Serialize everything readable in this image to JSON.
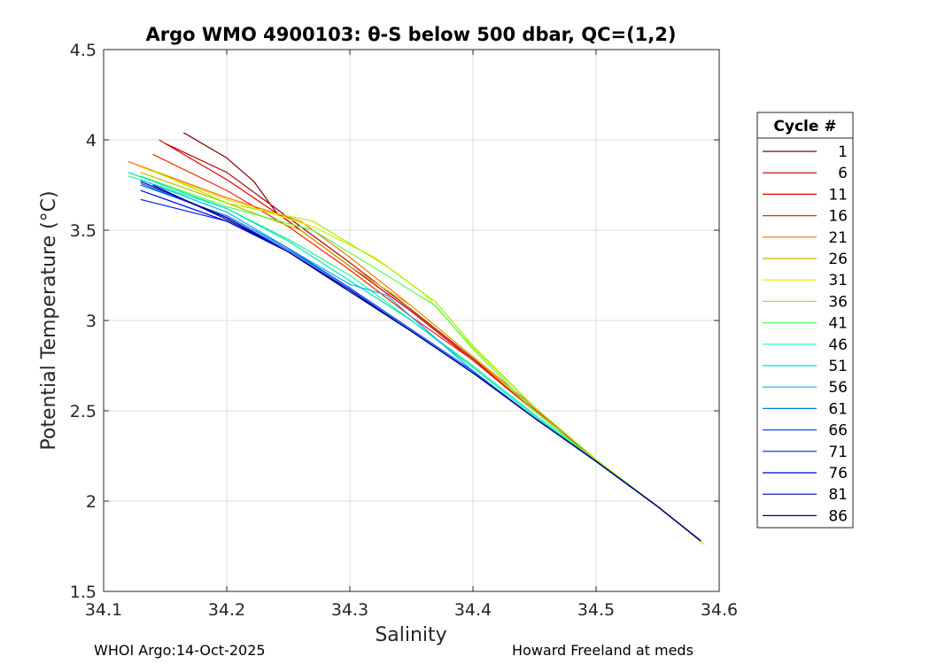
{
  "chart_data": {
    "type": "line",
    "title": "Argo WMO 4900103: θ-S below 500 dbar,  QC=(1,2)",
    "xlabel": "Salinity",
    "ylabel": "Potential Temperature (°C)",
    "xlim": [
      34.1,
      34.6
    ],
    "ylim": [
      1.5,
      4.5
    ],
    "xticks": [
      "34.1",
      "34.2",
      "34.3",
      "34.4",
      "34.5",
      "34.6"
    ],
    "yticks": [
      "1.5",
      "2",
      "2.5",
      "3",
      "3.5",
      "4",
      "4.5"
    ],
    "grid": true,
    "legend": {
      "title": "Cycle #",
      "placement": "right-outside",
      "entries": [
        "1",
        "6",
        "11",
        "16",
        "21",
        "26",
        "31",
        "36",
        "41",
        "46",
        "51",
        "56",
        "61",
        "66",
        "71",
        "76",
        "81",
        "86"
      ]
    },
    "series": [
      {
        "name": "1",
        "color": "#800000",
        "x": [
          34.165,
          34.2,
          34.222,
          34.24,
          34.3,
          34.35,
          34.4,
          34.45,
          34.5,
          34.55,
          34.585
        ],
        "y": [
          4.04,
          3.9,
          3.77,
          3.6,
          3.3,
          3.05,
          2.78,
          2.5,
          2.22,
          1.97,
          1.78
        ]
      },
      {
        "name": "6",
        "color": "#b00000",
        "x": [
          34.15,
          34.2,
          34.24,
          34.3,
          34.35,
          34.4,
          34.45,
          34.5,
          34.55,
          34.585
        ],
        "y": [
          3.98,
          3.82,
          3.62,
          3.32,
          3.06,
          2.79,
          2.5,
          2.22,
          1.97,
          1.78
        ]
      },
      {
        "name": "11",
        "color": "#e00000",
        "x": [
          34.145,
          34.2,
          34.25,
          34.3,
          34.35,
          34.4,
          34.45,
          34.5,
          34.55,
          34.585
        ],
        "y": [
          4.0,
          3.78,
          3.55,
          3.3,
          3.05,
          2.78,
          2.5,
          2.22,
          1.97,
          1.78
        ]
      },
      {
        "name": "16",
        "color": "#ff2000",
        "x": [
          34.14,
          34.2,
          34.25,
          34.3,
          34.35,
          34.4,
          34.43,
          34.47,
          34.5,
          34.55,
          34.585
        ],
        "y": [
          3.92,
          3.72,
          3.52,
          3.28,
          3.02,
          2.78,
          2.62,
          2.4,
          2.22,
          1.97,
          1.78
        ]
      },
      {
        "name": "21",
        "color": "#ff7000",
        "x": [
          34.12,
          34.2,
          34.26,
          34.3,
          34.35,
          34.4,
          34.45,
          34.5,
          34.55,
          34.585
        ],
        "y": [
          3.88,
          3.68,
          3.55,
          3.35,
          3.08,
          2.8,
          2.52,
          2.23,
          1.97,
          1.78
        ]
      },
      {
        "name": "26",
        "color": "#c8b400",
        "x": [
          34.13,
          34.2,
          34.26,
          34.3,
          34.35,
          34.4,
          34.45,
          34.5,
          34.55,
          34.588
        ],
        "y": [
          3.82,
          3.65,
          3.5,
          3.3,
          3.08,
          2.8,
          2.5,
          2.22,
          1.97,
          1.76
        ]
      },
      {
        "name": "31",
        "color": "#e6e600",
        "x": [
          34.13,
          34.2,
          34.27,
          34.32,
          34.36,
          34.4,
          34.45,
          34.5,
          34.55,
          34.588
        ],
        "y": [
          3.85,
          3.67,
          3.52,
          3.35,
          3.15,
          2.85,
          2.52,
          2.23,
          1.97,
          1.76
        ]
      },
      {
        "name": "36",
        "color": "#a0f000",
        "x": [
          34.14,
          34.2,
          34.27,
          34.33,
          34.37,
          34.4,
          34.45,
          34.5,
          34.55,
          34.585
        ],
        "y": [
          3.83,
          3.65,
          3.55,
          3.3,
          3.1,
          2.86,
          2.52,
          2.23,
          1.97,
          1.78
        ]
      },
      {
        "name": "41",
        "color": "#50ff50",
        "x": [
          34.13,
          34.2,
          34.27,
          34.33,
          34.37,
          34.4,
          34.45,
          34.5,
          34.55,
          34.585
        ],
        "y": [
          3.8,
          3.63,
          3.5,
          3.25,
          3.08,
          2.84,
          2.5,
          2.22,
          1.97,
          1.78
        ]
      },
      {
        "name": "46",
        "color": "#20ff90",
        "x": [
          34.12,
          34.2,
          34.25,
          34.3,
          34.35,
          34.4,
          34.45,
          34.5,
          34.55,
          34.585
        ],
        "y": [
          3.8,
          3.62,
          3.45,
          3.25,
          3.0,
          2.75,
          2.48,
          2.22,
          1.97,
          1.78
        ]
      },
      {
        "name": "51",
        "color": "#00e0c0",
        "x": [
          34.12,
          34.2,
          34.25,
          34.3,
          34.35,
          34.4,
          34.45,
          34.5,
          34.55,
          34.585
        ],
        "y": [
          3.82,
          3.62,
          3.44,
          3.22,
          3.0,
          2.74,
          2.47,
          2.22,
          1.97,
          1.78
        ]
      },
      {
        "name": "56",
        "color": "#00b0ff",
        "x": [
          34.13,
          34.2,
          34.25,
          34.3,
          34.33,
          34.35,
          34.4,
          34.45,
          34.5,
          34.55,
          34.585
        ],
        "y": [
          3.78,
          3.6,
          3.4,
          3.2,
          3.14,
          3.02,
          2.72,
          2.46,
          2.22,
          1.97,
          1.78
        ]
      },
      {
        "name": "61",
        "color": "#0080d0",
        "x": [
          34.13,
          34.2,
          34.25,
          34.3,
          34.35,
          34.4,
          34.45,
          34.5,
          34.55,
          34.585
        ],
        "y": [
          3.75,
          3.58,
          3.4,
          3.18,
          2.95,
          2.72,
          2.46,
          2.22,
          1.97,
          1.78
        ]
      },
      {
        "name": "66",
        "color": "#0050ff",
        "x": [
          34.13,
          34.2,
          34.25,
          34.3,
          34.35,
          34.4,
          34.45,
          34.5,
          34.55,
          34.585
        ],
        "y": [
          3.76,
          3.57,
          3.39,
          3.18,
          2.95,
          2.72,
          2.46,
          2.22,
          1.97,
          1.78
        ]
      },
      {
        "name": "71",
        "color": "#0020ff",
        "x": [
          34.13,
          34.2,
          34.25,
          34.3,
          34.35,
          34.4,
          34.45,
          34.5,
          34.55,
          34.585
        ],
        "y": [
          3.67,
          3.55,
          3.38,
          3.17,
          2.94,
          2.71,
          2.46,
          2.22,
          1.97,
          1.78
        ]
      },
      {
        "name": "76",
        "color": "#0000e0",
        "x": [
          34.13,
          34.2,
          34.25,
          34.3,
          34.35,
          34.4,
          34.45,
          34.5,
          34.55,
          34.585
        ],
        "y": [
          3.72,
          3.55,
          3.38,
          3.16,
          2.94,
          2.71,
          2.46,
          2.22,
          1.97,
          1.78
        ]
      },
      {
        "name": "81",
        "color": "#0000b0",
        "x": [
          34.13,
          34.2,
          34.25,
          34.3,
          34.35,
          34.4,
          34.45,
          34.5,
          34.55,
          34.585
        ],
        "y": [
          3.77,
          3.57,
          3.38,
          3.17,
          2.94,
          2.71,
          2.46,
          2.22,
          1.97,
          1.78
        ]
      },
      {
        "name": "86",
        "color": "#000080",
        "x": [
          34.14,
          34.2,
          34.25,
          34.3,
          34.35,
          34.4,
          34.45,
          34.5,
          34.55,
          34.585
        ],
        "y": [
          3.75,
          3.56,
          3.38,
          3.16,
          2.94,
          2.71,
          2.46,
          2.22,
          1.97,
          1.78
        ]
      }
    ]
  },
  "footer": {
    "left": "WHOI Argo:14-Oct-2025",
    "right": "Howard Freeland at meds"
  }
}
